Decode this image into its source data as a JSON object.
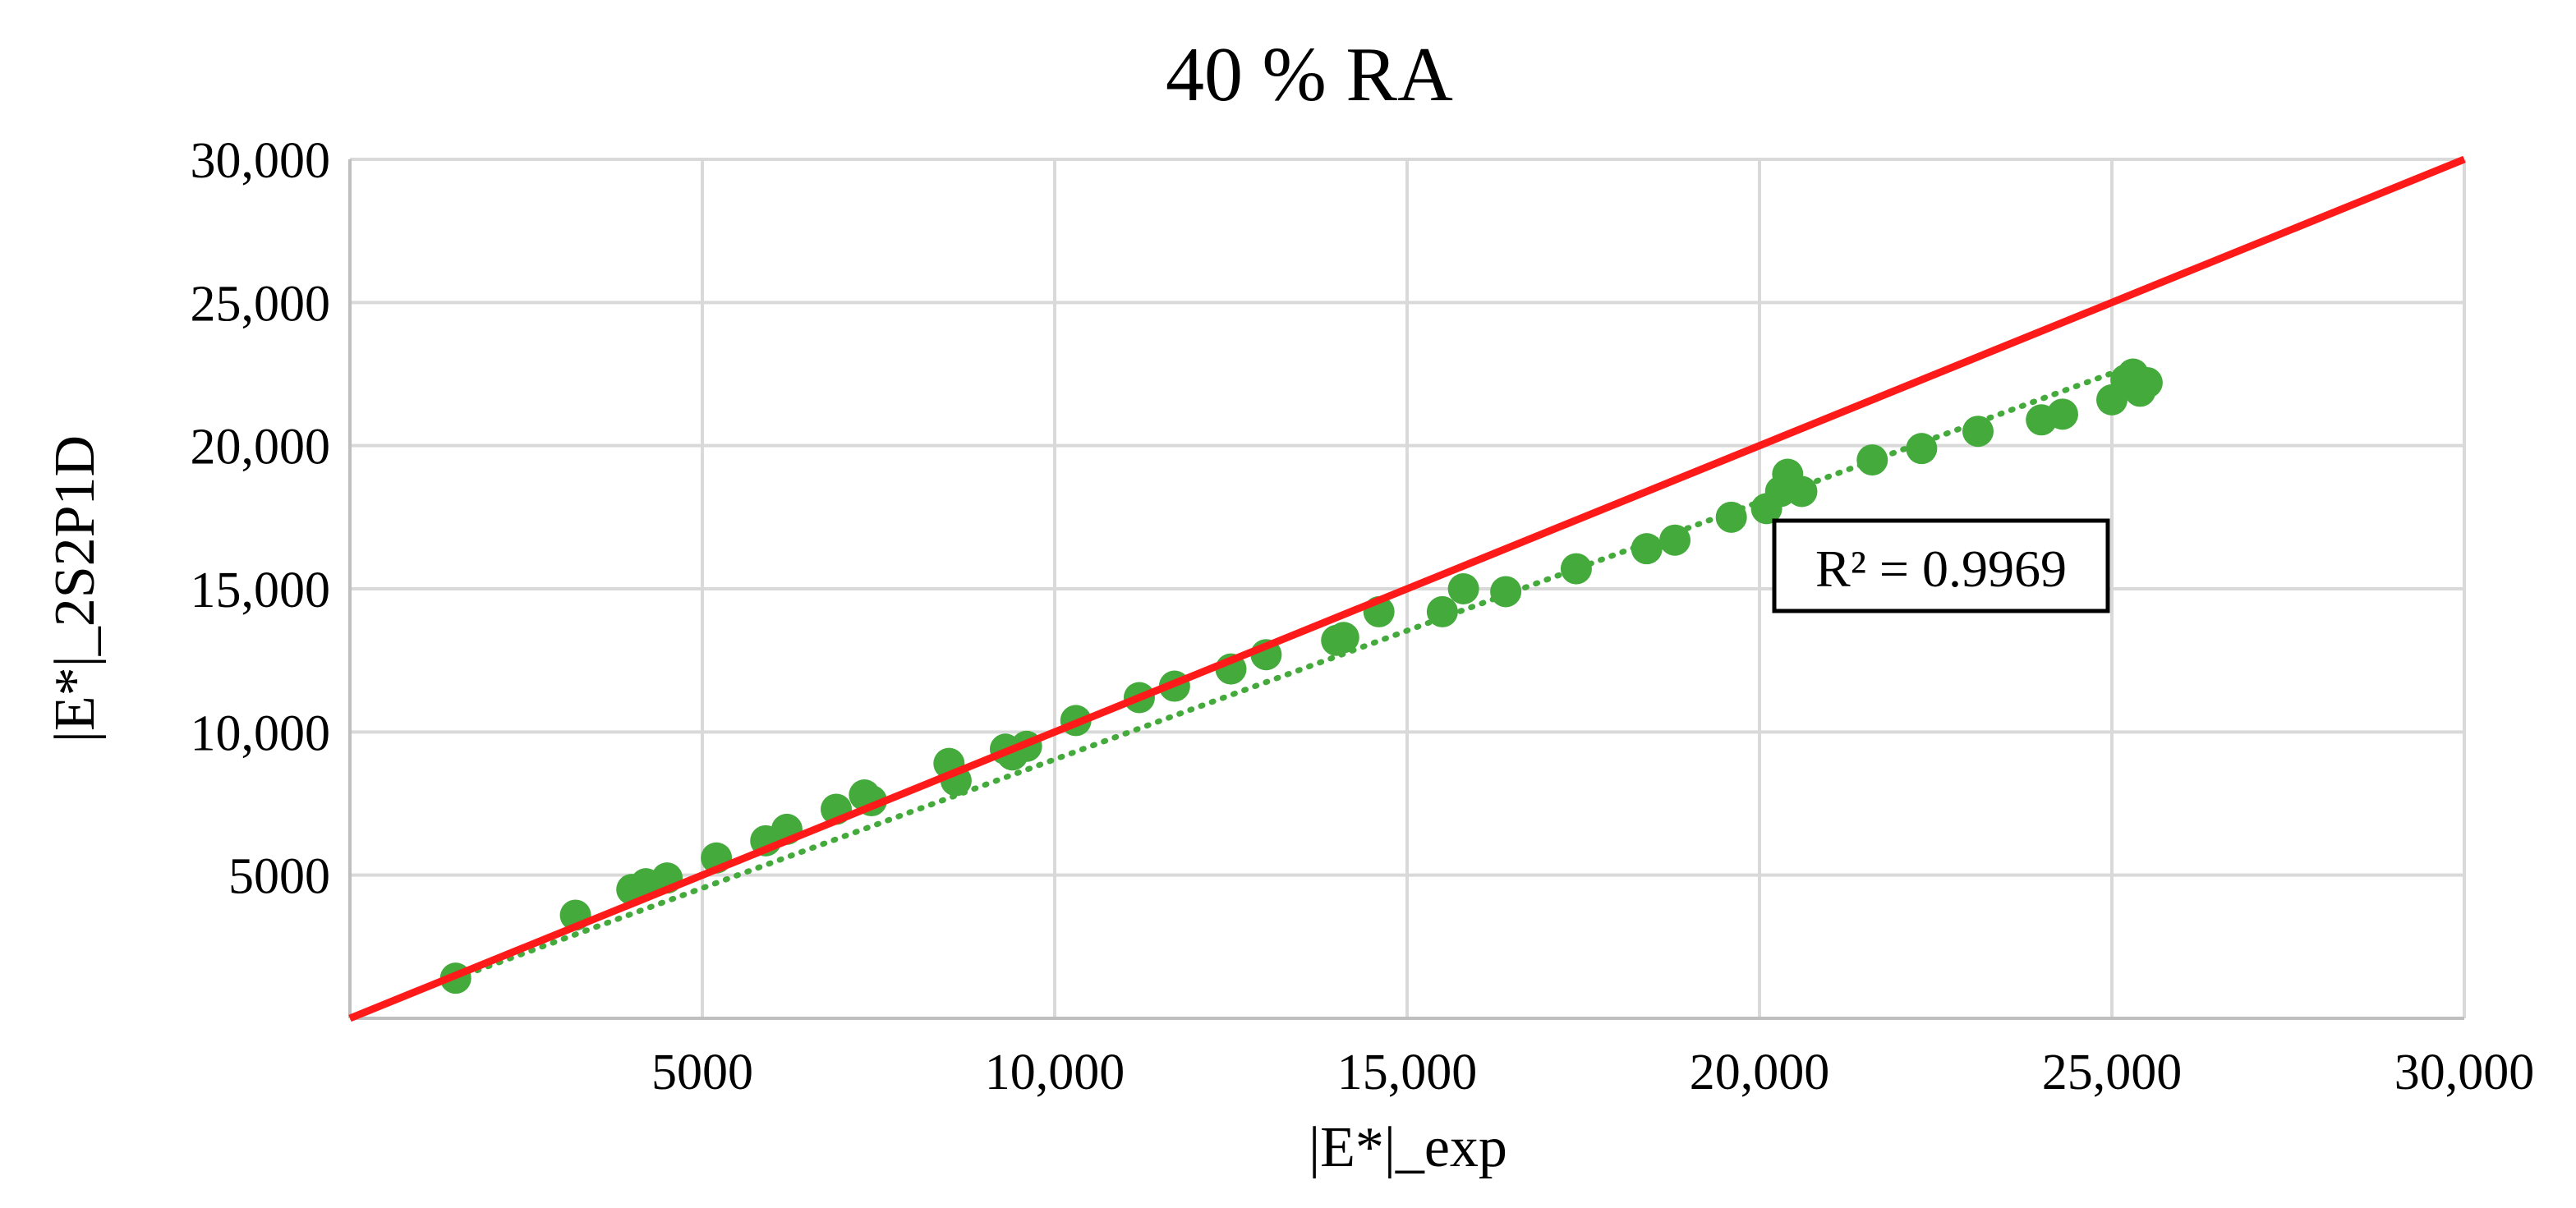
{
  "chart_data": {
    "type": "scatter",
    "title": "40 % RA",
    "xlabel": "|E*|_exp",
    "ylabel": "|E*|_2S2P1D",
    "xlim": [
      0,
      30000
    ],
    "ylim": [
      0,
      30000
    ],
    "x_ticks": [
      5000,
      10000,
      15000,
      20000,
      25000,
      30000
    ],
    "x_tick_labels": [
      "5000",
      "10,000",
      "15,000",
      "20,000",
      "25,000",
      "30,000"
    ],
    "y_ticks": [
      5000,
      10000,
      15000,
      20000,
      25000,
      30000
    ],
    "y_tick_labels": [
      "5000",
      "10,000",
      "15,000",
      "20,000",
      "25,000",
      "30,000"
    ],
    "grid": true,
    "annotation": "R² = 0.9969",
    "colors": {
      "points": "#44aa3c",
      "equality_line": "#ff1a1a",
      "trendline": "#44aa3c",
      "grid": "#d9d9d9"
    },
    "series": [
      {
        "marker": "circle",
        "x": [
          1500,
          3200,
          4000,
          4200,
          4500,
          5200,
          5900,
          6200,
          6900,
          7300,
          7400,
          8500,
          8600,
          9300,
          9400,
          9600,
          10300,
          11200,
          11700,
          12500,
          13000,
          14000,
          14100,
          14600,
          15500,
          15800,
          16400,
          17400,
          18400,
          18800,
          19600,
          20100,
          20300,
          20400,
          20600,
          21600,
          22300,
          23100,
          24000,
          24300,
          25000,
          25200,
          25300,
          25400,
          25500
        ],
        "y": [
          1400,
          3600,
          4500,
          4700,
          4900,
          5600,
          6200,
          6600,
          7300,
          7800,
          7600,
          8900,
          8300,
          9400,
          9200,
          9500,
          10400,
          11200,
          11600,
          12200,
          12700,
          13200,
          13300,
          14200,
          14200,
          15000,
          14900,
          15700,
          16400,
          16700,
          17500,
          17800,
          18400,
          19000,
          18400,
          19500,
          19900,
          20500,
          20900,
          21100,
          21600,
          22300,
          22500,
          21900,
          22200
        ]
      }
    ],
    "equality_line": {
      "x": [
        0,
        30000
      ],
      "y": [
        0,
        30000
      ]
    },
    "trendline": {
      "style": "dotted",
      "x": [
        1500,
        25300
      ],
      "y": [
        1400,
        22800
      ]
    }
  }
}
